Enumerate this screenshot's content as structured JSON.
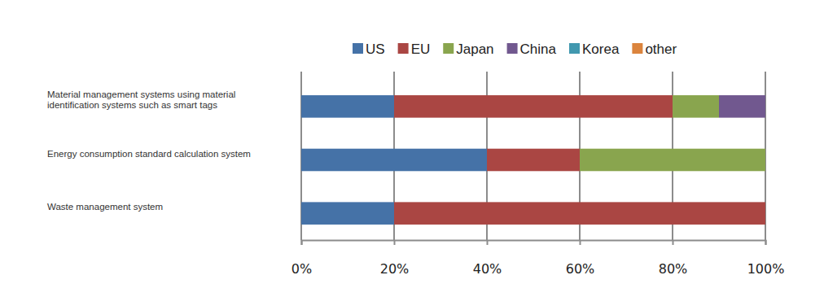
{
  "chart_data": {
    "type": "bar",
    "orientation": "horizontal",
    "stacked": true,
    "grid": true,
    "legend": "top",
    "categories": [
      "Material management systems using material identification systems such as smart tags",
      "Energy consumption standard calculation system",
      "Waste management system"
    ],
    "series": [
      {
        "name": "US",
        "color": "#4572a7",
        "values": [
          20,
          40,
          20
        ]
      },
      {
        "name": "EU",
        "color": "#aa4643",
        "values": [
          60,
          20,
          80
        ]
      },
      {
        "name": "Japan",
        "color": "#89a54e",
        "values": [
          10,
          40,
          0
        ]
      },
      {
        "name": "China",
        "color": "#71588f",
        "values": [
          10,
          0,
          0
        ]
      },
      {
        "name": "Korea",
        "color": "#4198af",
        "values": [
          0,
          0,
          0
        ]
      },
      {
        "name": "other",
        "color": "#db843d",
        "values": [
          0,
          0,
          0
        ]
      }
    ],
    "xlim": [
      0,
      100
    ],
    "xticks": [
      {
        "value": 0,
        "label": "0%"
      },
      {
        "value": 20,
        "label": "20%"
      },
      {
        "value": 40,
        "label": "40%"
      },
      {
        "value": 60,
        "label": "60%"
      },
      {
        "value": 80,
        "label": "80%"
      },
      {
        "value": 100,
        "label": "100%"
      }
    ]
  }
}
